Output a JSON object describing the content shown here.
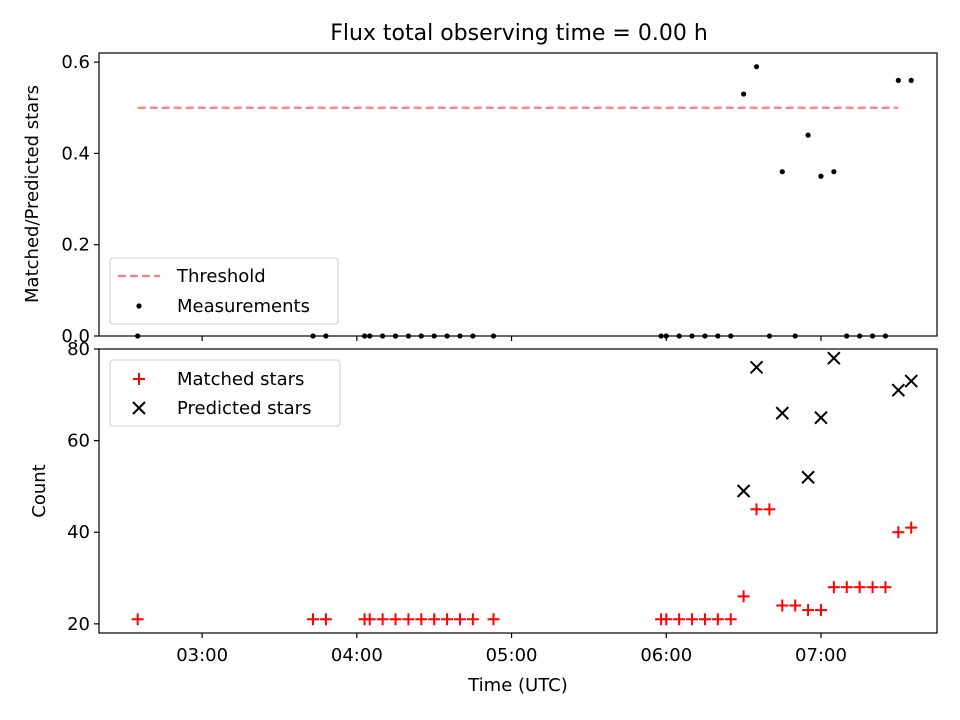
{
  "chart_data": [
    {
      "type": "scatter",
      "title": "Flux total observing time = 0.00 h",
      "xlabel": "",
      "ylabel": "Matched/Predicted stars",
      "ylim": [
        0.0,
        0.62
      ],
      "yticks": [
        0.0,
        0.2,
        0.4,
        0.6
      ],
      "ytick_labels": [
        "0.0",
        "0.2",
        "0.4",
        "0.6"
      ],
      "grid": false,
      "legend_position": "lower-left",
      "threshold": {
        "name": "Threshold",
        "value": 0.5,
        "x_start": "02:35",
        "x_end": "07:30",
        "color": "#ff7f7f",
        "style": "dashed"
      },
      "series": [
        {
          "name": "Measurements",
          "marker": "dot",
          "color": "#000000",
          "points": [
            {
              "x": "02:35",
              "y": 0.0
            },
            {
              "x": "03:43",
              "y": 0.0
            },
            {
              "x": "03:48",
              "y": 0.0
            },
            {
              "x": "04:03",
              "y": 0.0
            },
            {
              "x": "04:05",
              "y": 0.0
            },
            {
              "x": "04:10",
              "y": 0.0
            },
            {
              "x": "04:15",
              "y": 0.0
            },
            {
              "x": "04:20",
              "y": 0.0
            },
            {
              "x": "04:25",
              "y": 0.0
            },
            {
              "x": "04:30",
              "y": 0.0
            },
            {
              "x": "04:35",
              "y": 0.0
            },
            {
              "x": "04:40",
              "y": 0.0
            },
            {
              "x": "04:45",
              "y": 0.0
            },
            {
              "x": "04:53",
              "y": 0.0
            },
            {
              "x": "05:58",
              "y": 0.0
            },
            {
              "x": "06:00",
              "y": 0.0
            },
            {
              "x": "06:05",
              "y": 0.0
            },
            {
              "x": "06:10",
              "y": 0.0
            },
            {
              "x": "06:15",
              "y": 0.0
            },
            {
              "x": "06:20",
              "y": 0.0
            },
            {
              "x": "06:25",
              "y": 0.0
            },
            {
              "x": "06:30",
              "y": 0.53
            },
            {
              "x": "06:35",
              "y": 0.59
            },
            {
              "x": "06:40",
              "y": 0.0
            },
            {
              "x": "06:45",
              "y": 0.36
            },
            {
              "x": "06:50",
              "y": 0.0
            },
            {
              "x": "06:55",
              "y": 0.44
            },
            {
              "x": "07:00",
              "y": 0.35
            },
            {
              "x": "07:05",
              "y": 0.36
            },
            {
              "x": "07:10",
              "y": 0.0
            },
            {
              "x": "07:15",
              "y": 0.0
            },
            {
              "x": "07:20",
              "y": 0.0
            },
            {
              "x": "07:25",
              "y": 0.0
            },
            {
              "x": "07:30",
              "y": 0.56
            },
            {
              "x": "07:35",
              "y": 0.56
            }
          ]
        }
      ]
    },
    {
      "type": "scatter",
      "title": "",
      "xlabel": "Time (UTC)",
      "ylabel": "Count",
      "ylim": [
        18,
        80
      ],
      "yticks": [
        20,
        40,
        60,
        80
      ],
      "ytick_labels": [
        "20",
        "40",
        "60",
        "80"
      ],
      "xlim": [
        "02:20",
        "07:45"
      ],
      "xticks": [
        "03:00",
        "04:00",
        "05:00",
        "06:00",
        "07:00"
      ],
      "xtick_labels": [
        "03:00",
        "04:00",
        "05:00",
        "06:00",
        "07:00"
      ],
      "grid": false,
      "legend_position": "top-left",
      "series": [
        {
          "name": "Matched stars",
          "marker": "plus",
          "color": "#ff0000",
          "points": [
            {
              "x": "02:35",
              "y": 21
            },
            {
              "x": "03:43",
              "y": 21
            },
            {
              "x": "03:48",
              "y": 21
            },
            {
              "x": "04:03",
              "y": 21
            },
            {
              "x": "04:05",
              "y": 21
            },
            {
              "x": "04:10",
              "y": 21
            },
            {
              "x": "04:15",
              "y": 21
            },
            {
              "x": "04:20",
              "y": 21
            },
            {
              "x": "04:25",
              "y": 21
            },
            {
              "x": "04:30",
              "y": 21
            },
            {
              "x": "04:35",
              "y": 21
            },
            {
              "x": "04:40",
              "y": 21
            },
            {
              "x": "04:45",
              "y": 21
            },
            {
              "x": "04:53",
              "y": 21
            },
            {
              "x": "05:58",
              "y": 21
            },
            {
              "x": "06:00",
              "y": 21
            },
            {
              "x": "06:05",
              "y": 21
            },
            {
              "x": "06:10",
              "y": 21
            },
            {
              "x": "06:15",
              "y": 21
            },
            {
              "x": "06:20",
              "y": 21
            },
            {
              "x": "06:25",
              "y": 21
            },
            {
              "x": "06:30",
              "y": 26
            },
            {
              "x": "06:35",
              "y": 45
            },
            {
              "x": "06:40",
              "y": 45
            },
            {
              "x": "06:45",
              "y": 24
            },
            {
              "x": "06:50",
              "y": 24
            },
            {
              "x": "06:55",
              "y": 23
            },
            {
              "x": "07:00",
              "y": 23
            },
            {
              "x": "07:05",
              "y": 28
            },
            {
              "x": "07:10",
              "y": 28
            },
            {
              "x": "07:15",
              "y": 28
            },
            {
              "x": "07:20",
              "y": 28
            },
            {
              "x": "07:25",
              "y": 28
            },
            {
              "x": "07:30",
              "y": 40
            },
            {
              "x": "07:35",
              "y": 41
            }
          ]
        },
        {
          "name": "Predicted stars",
          "marker": "x",
          "color": "#000000",
          "points": [
            {
              "x": "06:30",
              "y": 49
            },
            {
              "x": "06:35",
              "y": 76
            },
            {
              "x": "06:45",
              "y": 66
            },
            {
              "x": "06:55",
              "y": 52
            },
            {
              "x": "07:00",
              "y": 65
            },
            {
              "x": "07:05",
              "y": 78
            },
            {
              "x": "07:30",
              "y": 71
            },
            {
              "x": "07:35",
              "y": 73
            }
          ]
        }
      ]
    }
  ]
}
